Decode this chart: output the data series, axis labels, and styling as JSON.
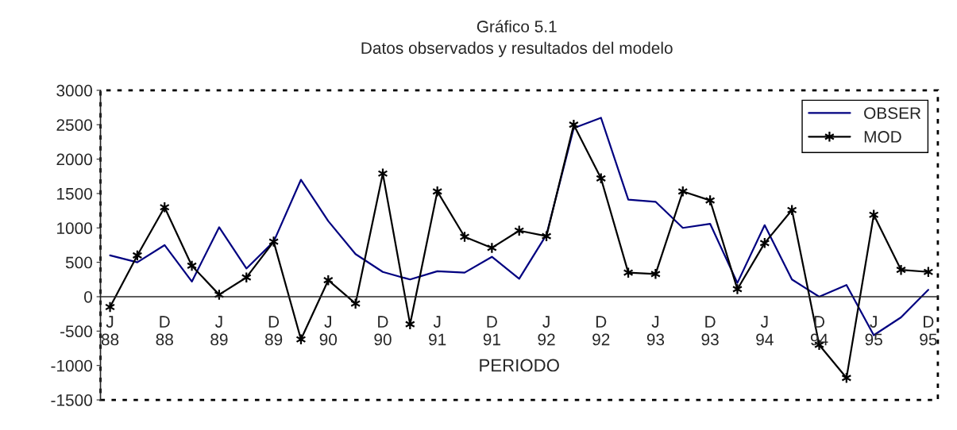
{
  "chart_data": {
    "type": "line",
    "title": "Gráfico 5.1",
    "subtitle": "Datos observados y resultados del modelo",
    "xlabel": "PERIODO",
    "categories": [
      "J\n88",
      null,
      "D\n88",
      null,
      "J\n89",
      null,
      "D\n89",
      null,
      "J\n90",
      null,
      "D\n90",
      null,
      "J\n91",
      null,
      "D\n91",
      null,
      "J\n92",
      null,
      "D\n92",
      null,
      "J\n93",
      null,
      "D\n93",
      null,
      "J\n94",
      null,
      "D\n94",
      null,
      "J\n95",
      null,
      "D\n95"
    ],
    "series": [
      {
        "name": "OBSER",
        "color": "#000080",
        "marker": "none",
        "values": [
          600,
          500,
          750,
          220,
          1010,
          410,
          800,
          1700,
          1100,
          620,
          360,
          250,
          370,
          350,
          580,
          260,
          900,
          2450,
          2600,
          1410,
          1380,
          1000,
          1060,
          200,
          1040,
          250,
          0,
          170,
          -560,
          -300,
          100
        ]
      },
      {
        "name": "MOD",
        "color": "#000000",
        "marker": "cross",
        "values": [
          -150,
          600,
          1300,
          450,
          30,
          280,
          800,
          -620,
          240,
          -100,
          1790,
          -400,
          1530,
          870,
          710,
          960,
          880,
          2500,
          1720,
          350,
          330,
          1530,
          1400,
          110,
          780,
          1260,
          -700,
          -1180,
          1190,
          390,
          360
        ]
      }
    ],
    "ylim": [
      -1500,
      3000
    ],
    "yticks": [
      -1500,
      -1000,
      -500,
      0,
      500,
      1000,
      1500,
      2000,
      2500,
      3000
    ],
    "grid": false,
    "legend": "top right",
    "line_style": "solid"
  }
}
